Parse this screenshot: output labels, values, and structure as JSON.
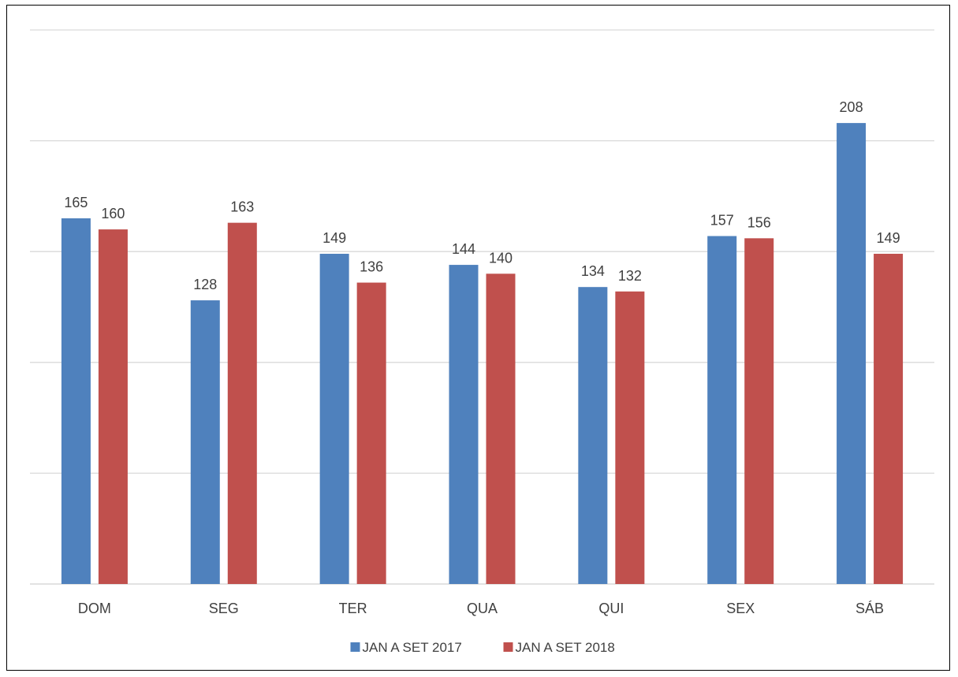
{
  "chart_data": {
    "type": "bar",
    "categories": [
      "DOM",
      "SEG",
      "TER",
      "QUA",
      "QUI",
      "SEX",
      "SÁB"
    ],
    "series": [
      {
        "name": "JAN A SET 2017",
        "values": [
          165,
          128,
          149,
          144,
          134,
          157,
          208
        ],
        "color": "#4F81BD"
      },
      {
        "name": "JAN A SET 2018",
        "values": [
          160,
          163,
          136,
          140,
          132,
          156,
          149
        ],
        "color": "#C0504D"
      }
    ],
    "title": "",
    "xlabel": "",
    "ylabel": "",
    "ylim": [
      0,
      250
    ],
    "grid": true,
    "legend_position": "bottom"
  }
}
